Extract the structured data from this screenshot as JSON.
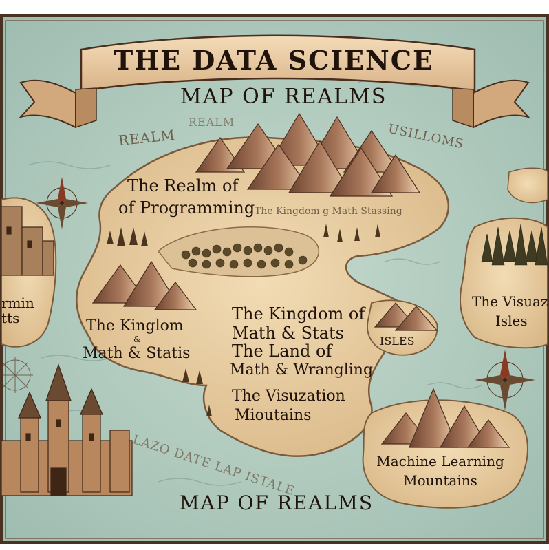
{
  "map": {
    "title": "THE DATA SCIENCE",
    "subtitle": "MAP OF REALMS",
    "footer_title": "MAP OF REALMS",
    "colors": {
      "sea": "#b9d2c6",
      "parchment": "#e9cfa6",
      "ink": "#1f130b",
      "banner": "#efd6b0",
      "frame": "#4a3222"
    },
    "labels": {
      "realm_programming_line1": "The Realm of",
      "realm_programming_line2": "of Programming",
      "kingdom_math_small": "The Kingdom g Math Stassing",
      "kinglom_line1": "The Kinglom",
      "kinglom_amp": "&",
      "kinglom_line2": "Math & Statis",
      "center_line1": "The Kingdom of",
      "center_line2": "Math & Stats",
      "center_line3": "The Land of",
      "center_line4": "Math & Wrangling",
      "center_line5": "The Visuzation",
      "center_line6": "Mioutains",
      "isles_small": "ISLES",
      "visual_isles_line1": "The Visuaz",
      "visual_isles_line2": "Isles",
      "ml_line1": "Machine Learning",
      "ml_line2": "Mountains",
      "left_edge_line1": "rmin",
      "left_edge_line2": "tts",
      "realm_faded_1": "REALM",
      "realm_faded_2": "REALM",
      "top_right_faded": "USILLOMS",
      "lower_faded": "LAZO DATE LAP ISTALE"
    },
    "icons": [
      "compass-rose-icon",
      "castle-icon",
      "mountain-icon",
      "forest-icon"
    ]
  }
}
